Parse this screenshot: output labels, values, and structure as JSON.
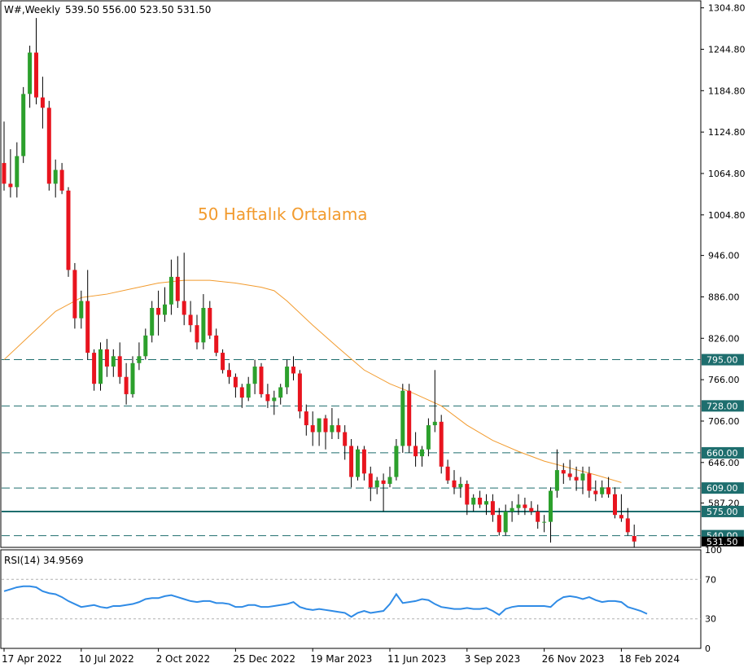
{
  "header": {
    "symbol": "W#,Weekly",
    "ohlc": "539.50 556.00 523.50 531.50"
  },
  "annotation": "50 Haftalık Ortalama",
  "rsi_label": "RSI(14) 34.9569",
  "colors": {
    "bull": "#2ca02c",
    "bear": "#e8141e",
    "ma": "#f29b2e",
    "rsi": "#2f8be6",
    "level_line": "#1e6e6e",
    "annotation": "#f29b2e"
  },
  "chart_data": [
    {
      "type": "candlestick",
      "title": "W#,Weekly",
      "ylim": [
        523,
        1315
      ],
      "y_ticks": [
        1304.8,
        1244.8,
        1184.8,
        1124.8,
        1064.8,
        1004.8,
        946.0,
        886.0,
        826.0,
        766.0,
        706.0,
        646.0,
        587.2
      ],
      "y_tick_labels": [
        "1304.80",
        "1244.80",
        "1184.80",
        "1124.80",
        "1064.80",
        "1004.80",
        "946.00",
        "886.00",
        "826.00",
        "766.00",
        "706.00",
        "646.00",
        "587.20"
      ],
      "x_ticks": [
        {
          "label": "17 Apr 2022",
          "index": 0
        },
        {
          "label": "10 Jul 2022",
          "index": 12
        },
        {
          "label": "2 Oct 2022",
          "index": 24
        },
        {
          "label": "25 Dec 2022",
          "index": 36
        },
        {
          "label": "19 Mar 2023",
          "index": 48
        },
        {
          "label": "11 Jun 2023",
          "index": 60
        },
        {
          "label": "3 Sep 2023",
          "index": 72
        },
        {
          "label": "26 Nov 2023",
          "index": 84
        },
        {
          "label": "18 Feb 2024",
          "index": 96
        }
      ],
      "levels": [
        {
          "label": "795.00",
          "value": 795,
          "style": "dashed"
        },
        {
          "label": "728.00",
          "value": 728,
          "style": "dashed"
        },
        {
          "label": "660.00",
          "value": 660,
          "style": "dashed"
        },
        {
          "label": "609.00",
          "value": 609,
          "style": "dashed"
        },
        {
          "label": "575.00",
          "value": 575,
          "style": "solid"
        },
        {
          "label": "540.00",
          "value": 540,
          "style": "dashed"
        }
      ],
      "last_price_label": "531.50",
      "candles": [
        [
          1080,
          1140,
          1040,
          1050
        ],
        [
          1050,
          1100,
          1030,
          1045
        ],
        [
          1045,
          1110,
          1030,
          1090
        ],
        [
          1090,
          1190,
          1080,
          1180
        ],
        [
          1180,
          1250,
          1160,
          1240
        ],
        [
          1240,
          1290,
          1165,
          1175
        ],
        [
          1175,
          1205,
          1130,
          1160
        ],
        [
          1160,
          1170,
          1040,
          1050
        ],
        [
          1050,
          1085,
          1030,
          1070
        ],
        [
          1070,
          1080,
          1035,
          1040
        ],
        [
          1040,
          1045,
          915,
          925
        ],
        [
          925,
          935,
          840,
          855
        ],
        [
          855,
          895,
          840,
          880
        ],
        [
          880,
          925,
          795,
          805
        ],
        [
          805,
          810,
          750,
          760
        ],
        [
          760,
          820,
          750,
          810
        ],
        [
          810,
          825,
          770,
          785
        ],
        [
          785,
          810,
          770,
          800
        ],
        [
          800,
          820,
          760,
          770
        ],
        [
          770,
          790,
          730,
          745
        ],
        [
          745,
          800,
          740,
          790
        ],
        [
          790,
          820,
          780,
          800
        ],
        [
          800,
          840,
          795,
          830
        ],
        [
          830,
          880,
          820,
          870
        ],
        [
          870,
          895,
          830,
          860
        ],
        [
          860,
          900,
          850,
          875
        ],
        [
          875,
          940,
          860,
          915
        ],
        [
          915,
          945,
          870,
          880
        ],
        [
          880,
          950,
          845,
          860
        ],
        [
          860,
          880,
          835,
          845
        ],
        [
          845,
          860,
          810,
          820
        ],
        [
          820,
          890,
          810,
          870
        ],
        [
          870,
          880,
          825,
          830
        ],
        [
          830,
          840,
          800,
          805
        ],
        [
          805,
          810,
          775,
          780
        ],
        [
          780,
          790,
          760,
          770
        ],
        [
          770,
          775,
          740,
          755
        ],
        [
          755,
          760,
          725,
          740
        ],
        [
          740,
          770,
          735,
          760
        ],
        [
          760,
          795,
          745,
          785
        ],
        [
          785,
          790,
          740,
          745
        ],
        [
          745,
          760,
          725,
          735
        ],
        [
          735,
          750,
          715,
          740
        ],
        [
          740,
          760,
          730,
          755
        ],
        [
          755,
          795,
          745,
          785
        ],
        [
          785,
          800,
          765,
          775
        ],
        [
          775,
          780,
          710,
          720
        ],
        [
          720,
          730,
          685,
          700
        ],
        [
          700,
          720,
          670,
          690
        ],
        [
          690,
          710,
          670,
          710
        ],
        [
          710,
          715,
          665,
          690
        ],
        [
          690,
          725,
          680,
          700
        ],
        [
          700,
          710,
          680,
          690
        ],
        [
          690,
          700,
          650,
          670
        ],
        [
          670,
          680,
          610,
          625
        ],
        [
          625,
          670,
          620,
          665
        ],
        [
          665,
          670,
          620,
          630
        ],
        [
          630,
          640,
          590,
          610
        ],
        [
          610,
          625,
          600,
          620
        ],
        [
          620,
          630,
          575,
          615
        ],
        [
          615,
          640,
          610,
          625
        ],
        [
          625,
          680,
          620,
          670
        ],
        [
          670,
          760,
          660,
          750
        ],
        [
          750,
          760,
          660,
          670
        ],
        [
          670,
          690,
          640,
          655
        ],
        [
          655,
          670,
          640,
          665
        ],
        [
          665,
          710,
          655,
          700
        ],
        [
          700,
          780,
          690,
          705
        ],
        [
          705,
          715,
          630,
          640
        ],
        [
          640,
          650,
          615,
          620
        ],
        [
          620,
          635,
          600,
          610
        ],
        [
          610,
          625,
          595,
          615
        ],
        [
          615,
          620,
          570,
          585
        ],
        [
          585,
          600,
          575,
          595
        ],
        [
          595,
          605,
          580,
          585
        ],
        [
          585,
          600,
          570,
          590
        ],
        [
          590,
          600,
          560,
          570
        ],
        [
          570,
          580,
          540,
          545
        ],
        [
          545,
          585,
          540,
          575
        ],
        [
          575,
          590,
          560,
          580
        ],
        [
          580,
          600,
          570,
          585
        ],
        [
          585,
          595,
          570,
          580
        ],
        [
          580,
          590,
          570,
          575
        ],
        [
          575,
          585,
          550,
          560
        ],
        [
          560,
          570,
          545,
          560
        ],
        [
          560,
          610,
          530,
          605
        ],
        [
          605,
          665,
          595,
          635
        ],
        [
          635,
          645,
          615,
          630
        ],
        [
          630,
          650,
          620,
          625
        ],
        [
          625,
          640,
          605,
          620
        ],
        [
          620,
          640,
          600,
          630
        ],
        [
          630,
          640,
          595,
          605
        ],
        [
          605,
          620,
          590,
          600
        ],
        [
          600,
          620,
          595,
          610
        ],
        [
          610,
          625,
          595,
          600
        ],
        [
          600,
          610,
          565,
          570
        ],
        [
          570,
          600,
          560,
          565
        ],
        [
          565,
          580,
          540,
          545
        ],
        [
          539.5,
          556,
          523.5,
          531.5
        ]
      ],
      "ma50": [
        [
          0,
          795
        ],
        [
          4,
          830
        ],
        [
          8,
          865
        ],
        [
          12,
          885
        ],
        [
          16,
          890
        ],
        [
          20,
          898
        ],
        [
          24,
          906
        ],
        [
          28,
          910
        ],
        [
          32,
          910
        ],
        [
          36,
          906
        ],
        [
          40,
          900
        ],
        [
          42,
          895
        ],
        [
          44,
          880
        ],
        [
          48,
          845
        ],
        [
          52,
          812
        ],
        [
          56,
          780
        ],
        [
          60,
          760
        ],
        [
          64,
          745
        ],
        [
          68,
          728
        ],
        [
          72,
          700
        ],
        [
          76,
          678
        ],
        [
          80,
          662
        ],
        [
          84,
          648
        ],
        [
          88,
          638
        ],
        [
          92,
          628
        ],
        [
          96,
          617
        ]
      ],
      "annotation": "50 Haftalık Ortalama"
    },
    {
      "type": "line",
      "title": "RSI(14) 34.9569",
      "ylim": [
        0,
        100
      ],
      "y_tick_labels": [
        "100",
        "70",
        "30",
        "0"
      ],
      "y_ticks": [
        100,
        70,
        30,
        0
      ],
      "reference_lines": [
        70,
        30
      ],
      "series": [
        {
          "name": "RSI(14)",
          "values": [
            58,
            60,
            62,
            63,
            63,
            62,
            58,
            56,
            55,
            52,
            48,
            45,
            42,
            43,
            44,
            42,
            41,
            43,
            43,
            44,
            45,
            47,
            50,
            51,
            51,
            53,
            54,
            52,
            50,
            48,
            47,
            48,
            48,
            46,
            46,
            45,
            42,
            42,
            44,
            44,
            42,
            42,
            43,
            44,
            45,
            47,
            42,
            40,
            39,
            40,
            39,
            38,
            37,
            36,
            32,
            36,
            38,
            36,
            37,
            38,
            45,
            55,
            46,
            47,
            48,
            50,
            49,
            45,
            42,
            41,
            40,
            40,
            41,
            40,
            40,
            41,
            38,
            34,
            40,
            42,
            43,
            43,
            43,
            43,
            43,
            42,
            48,
            52,
            53,
            52,
            50,
            52,
            49,
            47,
            48,
            48,
            47,
            42,
            40,
            38,
            35
          ]
        }
      ]
    }
  ]
}
